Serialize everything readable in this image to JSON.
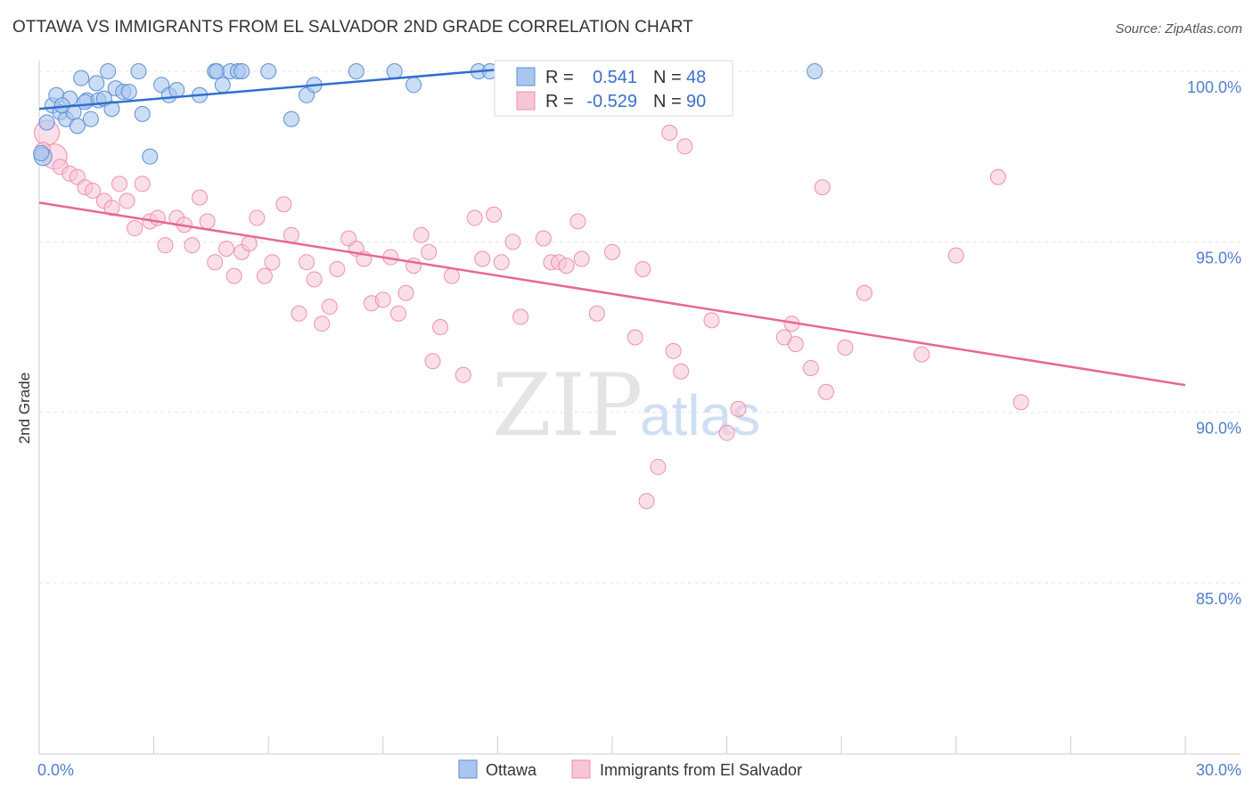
{
  "header": {
    "title": "OTTAWA VS IMMIGRANTS FROM EL SALVADOR 2ND GRADE CORRELATION CHART",
    "source": "Source: ZipAtlas.com"
  },
  "watermark": {
    "zip": "ZIP",
    "atlas": "atlas"
  },
  "legend_box": {
    "row1": {
      "r_label": "R =",
      "r_value": "0.541",
      "n_label": "N =",
      "n_value": "48"
    },
    "row2": {
      "r_label": "R =",
      "r_value": "-0.529",
      "n_label": "N =",
      "n_value": "90"
    }
  },
  "bottom_legend": {
    "ottawa": "Ottawa",
    "elsalvador": "Immigrants from El Salvador"
  },
  "colors": {
    "blue_fill": "#a9c6ee",
    "blue_stroke": "#5b8fd6",
    "blue_line": "#2f6fce",
    "pink_fill": "#f7c5d5",
    "pink_stroke": "#ef8fae",
    "pink_line": "#e8688f",
    "tick_text": "#4f7fcc",
    "grid": "#e3e3e3"
  },
  "chart_data": {
    "type": "scatter",
    "title": "OTTAWA VS IMMIGRANTS FROM EL SALVADOR 2ND GRADE CORRELATION CHART",
    "xlabel": "",
    "ylabel": "2nd Grade",
    "xlim": [
      0,
      30
    ],
    "ylim": [
      80.0,
      100.7
    ],
    "x_tick_labels": [
      {
        "value": 0,
        "label": "0.0%"
      },
      {
        "value": 30,
        "label": "30.0%"
      }
    ],
    "y_tick_labels": [
      {
        "value": 100,
        "label": "100.0%"
      },
      {
        "value": 95,
        "label": "95.0%"
      },
      {
        "value": 90,
        "label": "90.0%"
      },
      {
        "value": 85,
        "label": "85.0%"
      }
    ],
    "grid": true,
    "legend_position": "top-center",
    "series": [
      {
        "name": "Ottawa",
        "color": "#a9c6ee",
        "stroke": "#5b8fd6",
        "r": 0.541,
        "n": 48,
        "trend": [
          [
            0.0,
            98.9
          ],
          [
            12.0,
            100.05
          ]
        ],
        "points": [
          [
            0.1,
            97.5
          ],
          [
            0.2,
            98.5
          ],
          [
            0.35,
            99.0
          ],
          [
            0.45,
            99.3
          ],
          [
            0.55,
            98.8
          ],
          [
            0.7,
            98.6
          ],
          [
            0.8,
            99.2
          ],
          [
            0.9,
            98.8
          ],
          [
            1.0,
            98.4
          ],
          [
            1.1,
            99.8
          ],
          [
            1.25,
            99.15
          ],
          [
            1.35,
            98.6
          ],
          [
            1.5,
            99.65
          ],
          [
            1.55,
            99.15
          ],
          [
            1.7,
            99.2
          ],
          [
            1.8,
            100.0
          ],
          [
            1.9,
            98.9
          ],
          [
            2.0,
            99.5
          ],
          [
            2.2,
            99.4
          ],
          [
            2.35,
            99.4
          ],
          [
            2.6,
            100.0
          ],
          [
            2.7,
            98.75
          ],
          [
            2.9,
            97.5
          ],
          [
            3.2,
            99.6
          ],
          [
            3.4,
            99.3
          ],
          [
            3.6,
            99.45
          ],
          [
            4.2,
            99.3
          ],
          [
            4.6,
            100.0
          ],
          [
            4.65,
            100.0
          ],
          [
            4.8,
            99.6
          ],
          [
            5.0,
            100.0
          ],
          [
            5.2,
            100.0
          ],
          [
            5.3,
            100.0
          ],
          [
            6.0,
            100.0
          ],
          [
            6.6,
            98.6
          ],
          [
            7.0,
            99.3
          ],
          [
            7.2,
            99.6
          ],
          [
            8.3,
            100.0
          ],
          [
            9.3,
            100.0
          ],
          [
            9.8,
            99.6
          ],
          [
            11.5,
            100.0
          ],
          [
            11.8,
            100.0
          ],
          [
            12.8,
            100.0
          ],
          [
            13.0,
            100.0
          ],
          [
            20.3,
            100.0
          ],
          [
            0.05,
            97.6
          ],
          [
            0.6,
            99.0
          ],
          [
            1.2,
            99.1
          ]
        ]
      },
      {
        "name": "Immigrants from El Salvador",
        "color": "#f7c5d5",
        "stroke": "#ef8fae",
        "r": -0.529,
        "n": 90,
        "trend": [
          [
            0.0,
            96.15
          ],
          [
            30.0,
            90.8
          ]
        ],
        "points": [
          [
            0.2,
            98.2
          ],
          [
            0.4,
            97.5
          ],
          [
            0.55,
            97.2
          ],
          [
            0.8,
            97.0
          ],
          [
            1.0,
            96.9
          ],
          [
            1.2,
            96.6
          ],
          [
            1.4,
            96.5
          ],
          [
            1.7,
            96.2
          ],
          [
            1.9,
            96.0
          ],
          [
            2.1,
            96.7
          ],
          [
            2.3,
            96.2
          ],
          [
            2.5,
            95.4
          ],
          [
            2.7,
            96.7
          ],
          [
            2.9,
            95.6
          ],
          [
            3.1,
            95.7
          ],
          [
            3.3,
            94.9
          ],
          [
            3.6,
            95.7
          ],
          [
            3.8,
            95.5
          ],
          [
            4.0,
            94.9
          ],
          [
            4.2,
            96.3
          ],
          [
            4.4,
            95.6
          ],
          [
            4.6,
            94.4
          ],
          [
            4.9,
            94.8
          ],
          [
            5.1,
            94.0
          ],
          [
            5.3,
            94.7
          ],
          [
            5.5,
            94.95
          ],
          [
            5.7,
            95.7
          ],
          [
            5.9,
            94.0
          ],
          [
            6.1,
            94.4
          ],
          [
            6.4,
            96.1
          ],
          [
            6.6,
            95.2
          ],
          [
            6.8,
            92.9
          ],
          [
            7.0,
            94.4
          ],
          [
            7.2,
            93.9
          ],
          [
            7.4,
            92.6
          ],
          [
            7.6,
            93.1
          ],
          [
            7.8,
            94.2
          ],
          [
            8.1,
            95.1
          ],
          [
            8.3,
            94.8
          ],
          [
            8.5,
            94.5
          ],
          [
            8.7,
            93.2
          ],
          [
            9.0,
            93.3
          ],
          [
            9.2,
            94.55
          ],
          [
            9.4,
            92.9
          ],
          [
            9.6,
            93.5
          ],
          [
            9.8,
            94.3
          ],
          [
            10.0,
            95.2
          ],
          [
            10.2,
            94.7
          ],
          [
            10.3,
            91.5
          ],
          [
            10.5,
            92.5
          ],
          [
            10.8,
            94.0
          ],
          [
            11.1,
            91.1
          ],
          [
            11.4,
            95.7
          ],
          [
            11.6,
            94.5
          ],
          [
            11.9,
            95.8
          ],
          [
            12.1,
            94.4
          ],
          [
            12.4,
            95.0
          ],
          [
            12.6,
            92.8
          ],
          [
            13.2,
            95.1
          ],
          [
            13.4,
            94.4
          ],
          [
            13.6,
            94.4
          ],
          [
            13.8,
            94.3
          ],
          [
            14.1,
            95.6
          ],
          [
            14.2,
            94.5
          ],
          [
            14.6,
            92.9
          ],
          [
            15.0,
            94.7
          ],
          [
            15.6,
            92.2
          ],
          [
            15.8,
            94.2
          ],
          [
            15.9,
            87.4
          ],
          [
            16.2,
            88.4
          ],
          [
            16.5,
            98.2
          ],
          [
            16.6,
            91.8
          ],
          [
            16.8,
            91.2
          ],
          [
            16.9,
            97.8
          ],
          [
            17.6,
            92.7
          ],
          [
            18.0,
            89.4
          ],
          [
            18.3,
            90.1
          ],
          [
            19.5,
            92.2
          ],
          [
            19.7,
            92.6
          ],
          [
            19.8,
            92.0
          ],
          [
            20.2,
            91.3
          ],
          [
            20.5,
            96.6
          ],
          [
            20.6,
            90.6
          ],
          [
            21.1,
            91.9
          ],
          [
            21.6,
            93.5
          ],
          [
            23.1,
            91.7
          ],
          [
            24.0,
            94.6
          ],
          [
            25.1,
            96.9
          ],
          [
            25.7,
            90.3
          ],
          [
            0.1,
            97.7
          ]
        ]
      }
    ]
  }
}
